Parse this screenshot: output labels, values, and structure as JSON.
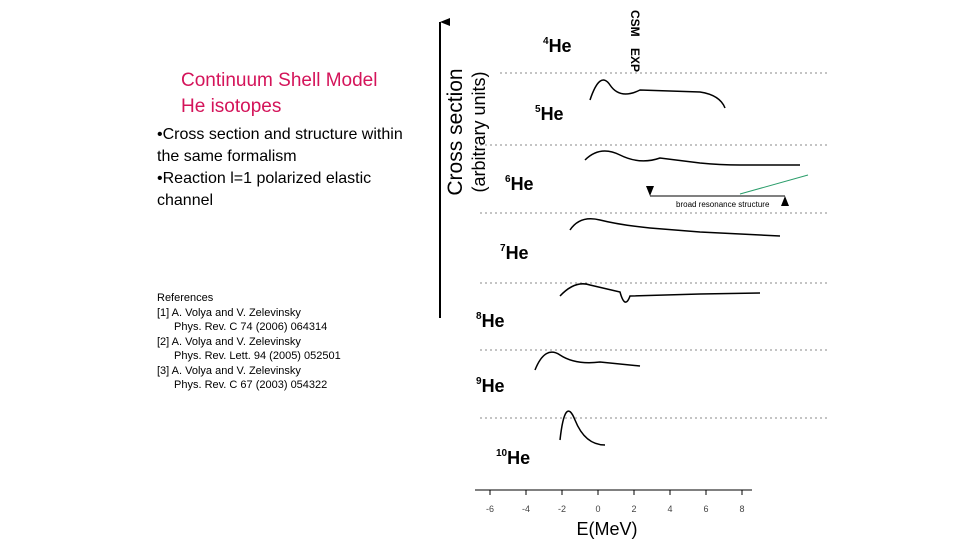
{
  "title": [
    "Continuum Shell Model",
    "He isotopes"
  ],
  "bullets": [
    "Cross section and structure within the same formalism",
    "Reaction l=1 polarized elastic channel"
  ],
  "references": {
    "heading": "References",
    "items": [
      [
        "[1] A. Volya and V. Zelevinsky",
        "Phys. Rev. C 74 (2006) 064314"
      ],
      [
        "[2] A. Volya and V. Zelevinsky",
        "Phys. Rev. Lett. 94 (2005) 052501"
      ],
      [
        "[3] A. Volya and V. Zelevinsky",
        "Phys. Rev. C 67 (2003) 054322"
      ]
    ]
  },
  "figure": {
    "y_label": [
      "Cross section",
      "(arbitrary units)"
    ],
    "x_label": "E(MeV)",
    "xlim": [
      -6,
      8
    ],
    "xticks": [
      -6,
      -4,
      -2,
      0,
      2,
      4,
      6,
      8
    ],
    "columns": [
      "CSM",
      "EXP"
    ],
    "annotation": "broad resonance structure",
    "isotopes": [
      {
        "mass": "4",
        "symbol": "He"
      },
      {
        "mass": "5",
        "symbol": "He"
      },
      {
        "mass": "6",
        "symbol": "He"
      },
      {
        "mass": "7",
        "symbol": "He"
      },
      {
        "mass": "8",
        "symbol": "He"
      },
      {
        "mass": "9",
        "symbol": "He"
      },
      {
        "mass": "10",
        "symbol": "He"
      }
    ]
  }
}
